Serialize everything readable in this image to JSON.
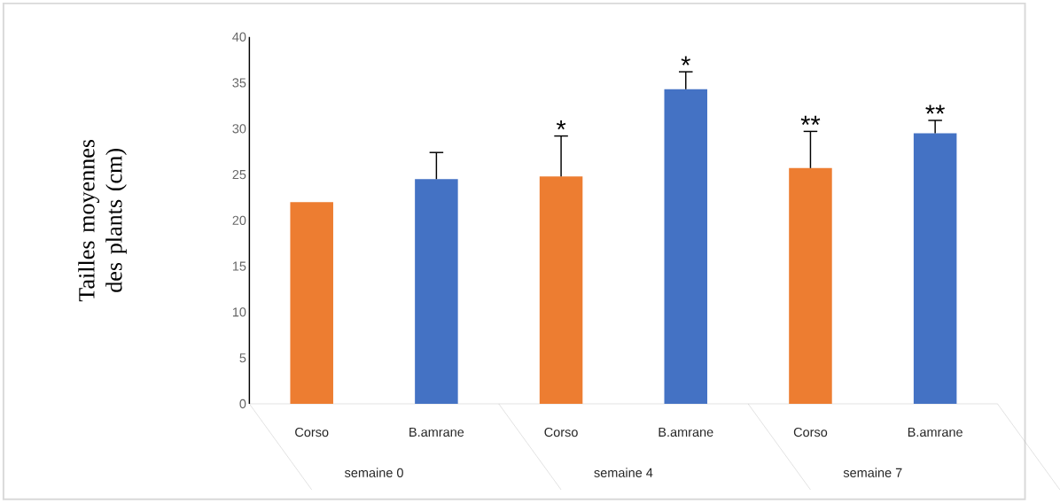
{
  "chart_data": {
    "type": "bar",
    "ylabel": "Tailles moyennes des plants (cm)",
    "categories": [
      "Corso",
      "B.amrane",
      "Corso",
      "B.amrane",
      "Corso",
      "B.amrane"
    ],
    "values": [
      22,
      24.5,
      24.8,
      34.3,
      25.7,
      29.5
    ],
    "errors": [
      null,
      2.9,
      4.4,
      1.9,
      4.0,
      1.4
    ],
    "colors": [
      "#ed7d31",
      "#4472c4",
      "#ed7d31",
      "#4472c4",
      "#ed7d31",
      "#4472c4"
    ],
    "ylim": [
      0,
      40
    ],
    "yticks": [
      0,
      5,
      10,
      15,
      20,
      25,
      30,
      35,
      40
    ],
    "annotations": [
      "*",
      "*",
      "**",
      "**",
      "semaine 0",
      "semaine 4",
      "semaine 7"
    ]
  }
}
